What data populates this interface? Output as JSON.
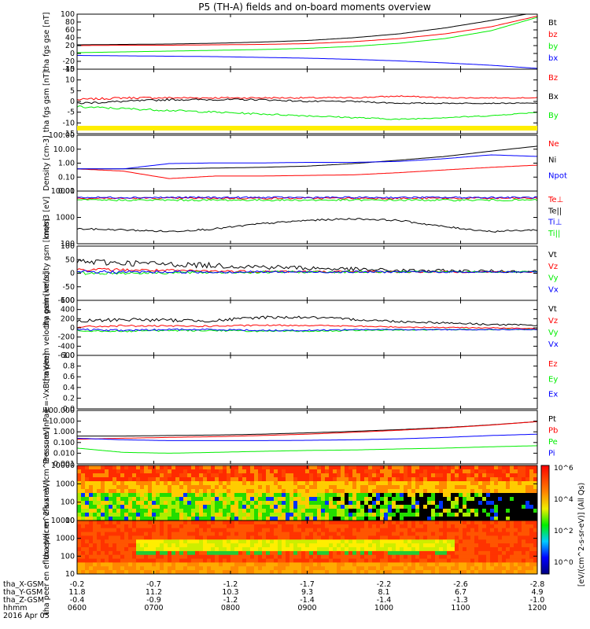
{
  "title": "P5 (TH-A) fields and on-board moments overview",
  "footer": {
    "rows": [
      {
        "label": "tha_X-GSM",
        "values": [
          "-0.2",
          "-0.7",
          "-1.2",
          "-1.7",
          "-2.2",
          "-2.6",
          "-2.8"
        ]
      },
      {
        "label": "tha_Y-GSM",
        "values": [
          "11.8",
          "11.2",
          "10.3",
          "9.3",
          "8.1",
          "6.7",
          "4.9"
        ]
      },
      {
        "label": "tha_Z-GSM",
        "values": [
          "-0.4",
          "-0.9",
          "-1.2",
          "-1.4",
          "-1.4",
          "-1.3",
          "-1.0"
        ]
      },
      {
        "label": "hhmm",
        "values": [
          "0600",
          "0700",
          "0800",
          "0900",
          "1000",
          "1100",
          "1200"
        ]
      }
    ],
    "date": "2016 Apr 05"
  },
  "colorbar": {
    "label": "[eV/(cm^2-s-sr-eV)] (All Qs)",
    "ticks": [
      "10^6",
      "10^4",
      "10^2",
      "10^0"
    ]
  },
  "colors": {
    "black": "#000000",
    "red": "#ff0000",
    "green": "#00ee00",
    "blue": "#0000ff",
    "yellow": "#ffee00"
  },
  "chart_data": [
    {
      "type": "line",
      "ylabel": "tha fgs gse [nT]",
      "ylim": [
        -40,
        100
      ],
      "yticks": [
        "100",
        "80",
        "60",
        "40",
        "20",
        "0",
        "-20",
        "-40"
      ],
      "series": [
        {
          "name": "Bt",
          "color": "#000000",
          "x": [
            0,
            0.1,
            0.2,
            0.3,
            0.4,
            0.5,
            0.6,
            0.7,
            0.8,
            0.9,
            1
          ],
          "values": [
            22,
            23,
            24,
            26,
            29,
            33,
            40,
            50,
            65,
            84,
            105
          ]
        },
        {
          "name": "bz",
          "color": "#ff0000",
          "x": [
            0,
            0.1,
            0.2,
            0.3,
            0.4,
            0.5,
            0.6,
            0.7,
            0.8,
            0.9,
            1
          ],
          "values": [
            20,
            21,
            21,
            22,
            23,
            25,
            30,
            38,
            50,
            68,
            95
          ]
        },
        {
          "name": "by",
          "color": "#00ee00",
          "x": [
            0,
            0.1,
            0.2,
            0.3,
            0.4,
            0.5,
            0.6,
            0.7,
            0.8,
            0.9,
            1
          ],
          "values": [
            2,
            4,
            6,
            8,
            10,
            13,
            18,
            26,
            38,
            58,
            92
          ]
        },
        {
          "name": "bx",
          "color": "#0000ff",
          "x": [
            0,
            0.1,
            0.2,
            0.3,
            0.4,
            0.5,
            0.6,
            0.7,
            0.8,
            0.9,
            1
          ],
          "values": [
            -5,
            -6,
            -7,
            -8,
            -10,
            -12,
            -15,
            -19,
            -24,
            -30,
            -38
          ]
        }
      ]
    },
    {
      "type": "line",
      "ylabel": "tha fgs gsm [nT]",
      "ylim": [
        -18,
        18
      ],
      "yticks": [
        "15",
        "10",
        "5",
        "0",
        "-5",
        "-10",
        "-15"
      ],
      "series": [
        {
          "name": "Bz",
          "color": "#ff0000",
          "x": [
            0,
            0.1,
            0.2,
            0.3,
            0.4,
            0.5,
            0.6,
            0.7,
            0.8,
            0.9,
            1
          ],
          "values": [
            1,
            2,
            2,
            2,
            2,
            2,
            2,
            3,
            2,
            2,
            2
          ]
        },
        {
          "name": "Bx",
          "color": "#000000",
          "x": [
            0,
            0.1,
            0.2,
            0.3,
            0.4,
            0.5,
            0.6,
            0.7,
            0.8,
            0.9,
            1
          ],
          "values": [
            -1,
            0,
            1,
            1,
            1,
            0,
            0,
            -1,
            -1,
            -1,
            -1
          ]
        },
        {
          "name": "By",
          "color": "#00ee00",
          "x": [
            0,
            0.1,
            0.2,
            0.3,
            0.4,
            0.5,
            0.6,
            0.7,
            0.8,
            0.9,
            1
          ],
          "values": [
            -3,
            -4,
            -5,
            -6,
            -7,
            -8,
            -9,
            -10,
            -9,
            -8,
            -6
          ]
        }
      ]
    },
    {
      "type": "line",
      "ylabel": "Density [cm-3]",
      "yscale": "log",
      "ylim": [
        0.005,
        150
      ],
      "yticks": [
        "100.00",
        "10.00",
        "1.00",
        "0.10",
        "0.01"
      ],
      "series": [
        {
          "name": "Ne",
          "color": "#ff0000",
          "x": [
            0,
            0.1,
            0.2,
            0.3,
            0.4,
            0.5,
            0.6,
            0.7,
            0.8,
            0.9,
            1
          ],
          "values": [
            0.3,
            0.2,
            0.05,
            0.08,
            0.08,
            0.09,
            0.1,
            0.15,
            0.25,
            0.4,
            0.6
          ]
        },
        {
          "name": "Ni",
          "color": "#000000",
          "x": [
            0,
            0.1,
            0.2,
            0.3,
            0.4,
            0.5,
            0.6,
            0.7,
            0.8,
            0.9,
            1
          ],
          "values": [
            0.3,
            0.3,
            0.3,
            0.35,
            0.4,
            0.5,
            0.8,
            1.5,
            3,
            8,
            20
          ]
        },
        {
          "name": "Npot",
          "color": "#0000ff",
          "x": [
            0,
            0.1,
            0.2,
            0.3,
            0.4,
            0.5,
            0.6,
            0.7,
            0.8,
            0.9,
            1
          ],
          "values": [
            0.3,
            0.3,
            0.8,
            0.9,
            0.9,
            1,
            1,
            1.2,
            2,
            4,
            3
          ]
        }
      ]
    },
    {
      "type": "line",
      "ylabel": "mom3 [eV]",
      "yscale": "log",
      "ylim": [
        40,
        12000
      ],
      "yticks": [
        "10000",
        "1000",
        "100"
      ],
      "series": [
        {
          "name": "Te⊥",
          "color": "#ff0000",
          "x": [
            0,
            0.1,
            0.2,
            0.3,
            0.4,
            0.5,
            0.6,
            0.7,
            0.8,
            0.9,
            1
          ],
          "values": [
            5500,
            5500,
            5500,
            5500,
            5500,
            5500,
            5500,
            5500,
            5500,
            5500,
            5500
          ]
        },
        {
          "name": "Te||",
          "color": "#000000",
          "x": [
            0,
            0.1,
            0.2,
            0.3,
            0.4,
            0.5,
            0.6,
            0.7,
            0.8,
            0.9,
            1
          ],
          "values": [
            200,
            180,
            150,
            200,
            350,
            500,
            600,
            500,
            250,
            150,
            180
          ]
        },
        {
          "name": "Ti⊥",
          "color": "#0000ff",
          "x": [
            0,
            0.1,
            0.2,
            0.3,
            0.4,
            0.5,
            0.6,
            0.7,
            0.8,
            0.9,
            1
          ],
          "values": [
            6000,
            6000,
            6000,
            6000,
            6000,
            6000,
            6000,
            6000,
            6000,
            6000,
            6000
          ]
        },
        {
          "name": "Ti||",
          "color": "#00ee00",
          "x": [
            0,
            0.1,
            0.2,
            0.3,
            0.4,
            0.5,
            0.6,
            0.7,
            0.8,
            0.9,
            1
          ],
          "values": [
            4500,
            4500,
            4500,
            4500,
            4500,
            4500,
            4500,
            4500,
            4500,
            4500,
            4500
          ]
        }
      ]
    },
    {
      "type": "line",
      "ylabel": "tha peim velocity gsm [km/s]",
      "ylim": [
        -110,
        100
      ],
      "yticks": [
        "100",
        "50",
        "0",
        "-50",
        "-100"
      ],
      "series": [
        {
          "name": "Vt",
          "color": "#000000",
          "x": [
            0,
            0.1,
            0.2,
            0.3,
            0.4,
            0.5,
            0.6,
            0.7,
            0.8,
            0.9,
            1
          ],
          "values": [
            40,
            35,
            30,
            25,
            20,
            15,
            10,
            5,
            4,
            3,
            2
          ]
        },
        {
          "name": "Vz",
          "color": "#ff0000",
          "x": [
            0,
            0.1,
            0.2,
            0.3,
            0.4,
            0.5,
            0.6,
            0.7,
            0.8,
            0.9,
            1
          ],
          "values": [
            10,
            8,
            5,
            3,
            2,
            1,
            1,
            0,
            0,
            0,
            0
          ]
        },
        {
          "name": "Vy",
          "color": "#00ee00",
          "x": [
            0,
            0.1,
            0.2,
            0.3,
            0.4,
            0.5,
            0.6,
            0.7,
            0.8,
            0.9,
            1
          ],
          "values": [
            -5,
            -4,
            -3,
            -2,
            -1,
            0,
            0,
            0,
            0,
            0,
            0
          ]
        },
        {
          "name": "Vx",
          "color": "#0000ff",
          "x": [
            0,
            0.1,
            0.2,
            0.3,
            0.4,
            0.5,
            0.6,
            0.7,
            0.8,
            0.9,
            1
          ],
          "values": [
            0,
            0,
            0,
            0,
            0,
            0,
            0,
            0,
            0,
            0,
            0
          ]
        }
      ]
    },
    {
      "type": "line",
      "ylabel": "tha peem velocity gsm [km/s]",
      "ylim": [
        -650,
        650
      ],
      "yticks": [
        "600",
        "400",
        "200",
        "0",
        "-200",
        "-400",
        "-600"
      ],
      "series": [
        {
          "name": "Vt",
          "color": "#000000",
          "x": [
            0,
            0.1,
            0.2,
            0.3,
            0.4,
            0.5,
            0.6,
            0.7,
            0.8,
            0.9,
            1
          ],
          "values": [
            150,
            200,
            180,
            170,
            250,
            250,
            200,
            150,
            120,
            80,
            60
          ]
        },
        {
          "name": "Vz",
          "color": "#ff0000",
          "x": [
            0,
            0.1,
            0.2,
            0.3,
            0.4,
            0.5,
            0.6,
            0.7,
            0.8,
            0.9,
            1
          ],
          "values": [
            20,
            50,
            40,
            40,
            60,
            60,
            40,
            20,
            10,
            0,
            -20
          ]
        },
        {
          "name": "Vy",
          "color": "#00ee00",
          "x": [
            0,
            0.1,
            0.2,
            0.3,
            0.4,
            0.5,
            0.6,
            0.7,
            0.8,
            0.9,
            1
          ],
          "values": [
            -60,
            -80,
            -60,
            -60,
            -80,
            -80,
            -60,
            -50,
            -40,
            -40,
            -40
          ]
        },
        {
          "name": "Vx",
          "color": "#0000ff",
          "x": [
            0,
            0.1,
            0.2,
            0.3,
            0.4,
            0.5,
            0.6,
            0.7,
            0.8,
            0.9,
            1
          ],
          "values": [
            -40,
            -60,
            -40,
            -40,
            -60,
            -60,
            -40,
            -40,
            -40,
            -40,
            -40
          ]
        }
      ]
    },
    {
      "type": "line",
      "ylabel": "E=-VxB [mV/m]",
      "ylim": [
        0,
        1
      ],
      "yticks": [
        "1.0",
        "0.8",
        "0.6",
        "0.4",
        "0.2",
        "0.0"
      ],
      "series": [
        {
          "name": "Ez",
          "color": "#ff0000",
          "x": [],
          "values": []
        },
        {
          "name": "Ey",
          "color": "#00ee00",
          "x": [],
          "values": []
        },
        {
          "name": "Ex",
          "color": "#0000ff",
          "x": [],
          "values": []
        }
      ]
    },
    {
      "type": "line",
      "ylabel": "Pressure [nPa]",
      "yscale": "log",
      "ylim": [
        0.001,
        100
      ],
      "yticks": [
        "100.000",
        "10.000",
        "1.000",
        "0.100",
        "0.010",
        "0.001"
      ],
      "series": [
        {
          "name": "Pt",
          "color": "#000000",
          "x": [
            0,
            0.1,
            0.2,
            0.3,
            0.4,
            0.5,
            0.6,
            0.7,
            0.8,
            0.9,
            1
          ],
          "values": [
            0.4,
            0.4,
            0.45,
            0.5,
            0.6,
            0.8,
            1.1,
            1.6,
            2.5,
            4.5,
            9
          ]
        },
        {
          "name": "Pb",
          "color": "#ff0000",
          "x": [
            0,
            0.1,
            0.2,
            0.3,
            0.4,
            0.5,
            0.6,
            0.7,
            0.8,
            0.9,
            1
          ],
          "values": [
            0.2,
            0.25,
            0.3,
            0.35,
            0.45,
            0.6,
            0.9,
            1.4,
            2.3,
            4.3,
            9
          ]
        },
        {
          "name": "Pe",
          "color": "#00ee00",
          "x": [
            0,
            0.1,
            0.2,
            0.3,
            0.4,
            0.5,
            0.6,
            0.7,
            0.8,
            0.9,
            1
          ],
          "values": [
            0.03,
            0.012,
            0.01,
            0.012,
            0.015,
            0.018,
            0.02,
            0.025,
            0.03,
            0.04,
            0.05
          ]
        },
        {
          "name": "Pi",
          "color": "#0000ff",
          "x": [
            0,
            0.1,
            0.2,
            0.3,
            0.4,
            0.5,
            0.6,
            0.7,
            0.8,
            0.9,
            1
          ],
          "values": [
            0.25,
            0.18,
            0.15,
            0.15,
            0.15,
            0.16,
            0.18,
            0.22,
            0.3,
            0.45,
            0.6
          ]
        }
      ]
    },
    {
      "type": "heatmap",
      "ylabel": "tha peir en eflux eV/(cm^2-s-sr-eV)",
      "yscale": "log",
      "ylim": [
        5,
        25000
      ],
      "yticks": [
        "10000",
        "1000",
        "100",
        "10"
      ]
    },
    {
      "type": "heatmap",
      "ylabel": "tha peer en eflux eV/(cm^2-s-sr-eV)",
      "yscale": "log",
      "ylim": [
        5,
        25000
      ],
      "yticks": [
        "10000",
        "1000",
        "100",
        "10"
      ]
    }
  ]
}
